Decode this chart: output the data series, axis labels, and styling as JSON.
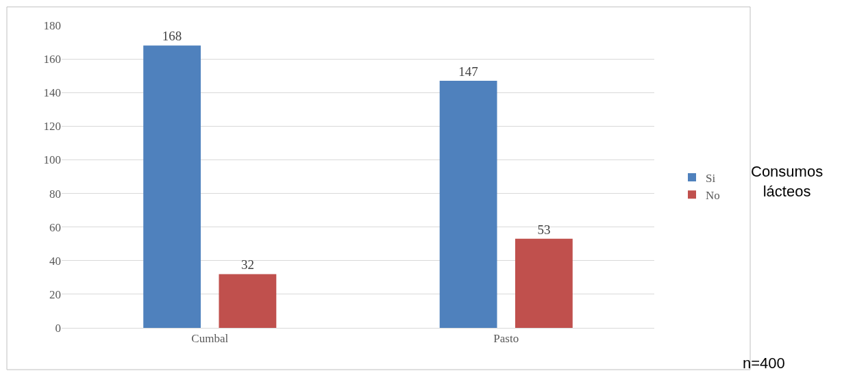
{
  "chart_data": {
    "type": "bar",
    "categories": [
      "Cumbal",
      "Pasto"
    ],
    "series": [
      {
        "name": "Si",
        "color": "#4f81bd",
        "values": [
          168,
          147
        ]
      },
      {
        "name": "No",
        "color": "#c0504d",
        "values": [
          32,
          53
        ]
      }
    ],
    "ylim": [
      0,
      180
    ],
    "yticks": [
      0,
      20,
      40,
      60,
      80,
      100,
      120,
      140,
      160,
      180
    ],
    "grid": "y",
    "legend": "right",
    "data_labels": true,
    "annotations": [
      "Consumos lácteos",
      "n=400"
    ]
  }
}
